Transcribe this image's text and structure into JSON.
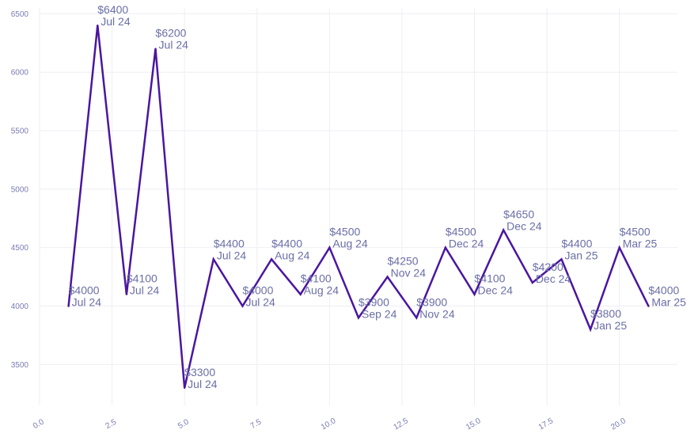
{
  "chart_data": {
    "type": "line",
    "title": "",
    "xlabel": "",
    "ylabel": "",
    "xlim": [
      0,
      22
    ],
    "ylim": [
      3150,
      6550
    ],
    "x_ticks": [
      0,
      2.5,
      5,
      7.5,
      10,
      12.5,
      15,
      17.5,
      20
    ],
    "x_tick_labels": [
      "0.0",
      "2.5",
      "5.0",
      "7.5",
      "10.0",
      "12.5",
      "15.0",
      "17.5",
      "20.0"
    ],
    "y_ticks": [
      3500,
      4000,
      4500,
      5000,
      5500,
      6000,
      6500
    ],
    "y_tick_labels": [
      "3500",
      "4000",
      "4500",
      "5000",
      "5500",
      "6000",
      "6500"
    ],
    "grid": true,
    "legend": "none",
    "series": [
      {
        "x": [
          1,
          2,
          3,
          4,
          5,
          6,
          7,
          8,
          9,
          10,
          11,
          12,
          13,
          14,
          15,
          16,
          17,
          18,
          19,
          20,
          21
        ],
        "values": [
          4000,
          6400,
          4100,
          6200,
          3300,
          4400,
          4000,
          4400,
          4100,
          4500,
          3900,
          4250,
          3900,
          4500,
          4100,
          4650,
          4200,
          4400,
          3800,
          4500,
          4000
        ],
        "labels": [
          [
            "$4000",
            "Jul 24"
          ],
          [
            "$6400",
            "Jul 24"
          ],
          [
            "$4100",
            "Jul 24"
          ],
          [
            "$6200",
            "Jul 24"
          ],
          [
            "$3300",
            "Jul 24"
          ],
          [
            "$4400",
            "Jul 24"
          ],
          [
            "$4000",
            "Jul 24"
          ],
          [
            "$4400",
            "Aug 24"
          ],
          [
            "$4100",
            "Aug 24"
          ],
          [
            "$4500",
            "Aug 24"
          ],
          [
            "$3900",
            "Sep 24"
          ],
          [
            "$4250",
            "Nov 24"
          ],
          [
            "$3900",
            "Nov 24"
          ],
          [
            "$4500",
            "Dec 24"
          ],
          [
            "$4100",
            "Dec 24"
          ],
          [
            "$4650",
            "Dec 24"
          ],
          [
            "$4200",
            "Dec 24"
          ],
          [
            "$4400",
            "Jan 25"
          ],
          [
            "$3800",
            "Jan 25"
          ],
          [
            "$4500",
            "Mar 25"
          ],
          [
            "$4000",
            "Mar 25"
          ]
        ]
      }
    ]
  },
  "colors": {
    "line": "#4a16a0",
    "label_text": "#6b6fa6",
    "tick_text": "#7a7cb5",
    "grid": "#eeeef5"
  }
}
